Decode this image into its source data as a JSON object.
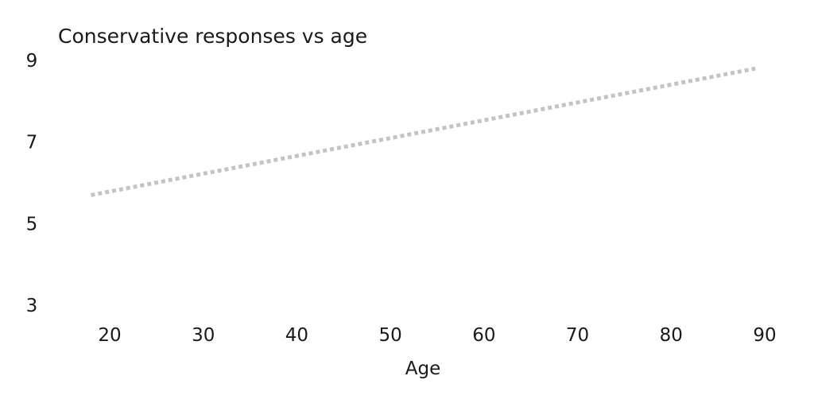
{
  "chart_data": {
    "type": "line",
    "title": "Conservative responses vs age",
    "xlabel": "Age",
    "ylabel": "",
    "xlim": [
      18,
      89
    ],
    "ylim": [
      3,
      9
    ],
    "x_ticks": [
      20,
      30,
      40,
      50,
      60,
      70,
      80,
      90
    ],
    "y_ticks": [
      3,
      5,
      7,
      9
    ],
    "grid": false,
    "legend": "none",
    "series": [
      {
        "x": [
          18,
          89
        ],
        "y": [
          5.7,
          8.8
        ],
        "style": "dotted",
        "color": "#c4c4c4"
      }
    ]
  }
}
